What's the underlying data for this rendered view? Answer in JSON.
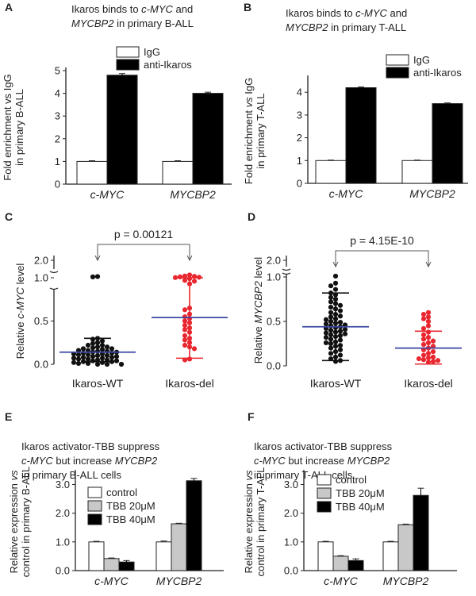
{
  "panel_letters": [
    "A",
    "B",
    "C",
    "D",
    "E",
    "F"
  ],
  "colors": {
    "igg": "#ffffff",
    "anti": "#000000",
    "wt_dots": "#111111",
    "del_dots": "#e8272f",
    "mean_line": "#3b46a6",
    "err_red": "#e8272f",
    "tbb20": "#c8c8c8",
    "tbb40": "#000000"
  },
  "chart_data": [
    {
      "panel": "A",
      "type": "bar",
      "title_lines": [
        [
          {
            "t": "Ikaros  binds to "
          },
          {
            "t": "c-MYC",
            "i": true
          },
          {
            "t": " and"
          }
        ],
        [
          {
            "t": "MYCBP2",
            "i": true
          },
          {
            "t": "  in primary B-ALL"
          }
        ]
      ],
      "ylabel_lines": [
        [
          {
            "t": "Fold enrichment vs IgG"
          }
        ],
        [
          {
            "t": "in primary B-ALL"
          }
        ]
      ],
      "categories": [
        "c-MYC",
        "MYCBP2"
      ],
      "series": [
        {
          "name": "IgG",
          "values": [
            1.0,
            1.0
          ],
          "errors": [
            0.03,
            0.03
          ]
        },
        {
          "name": "anti-Ikaros",
          "values": [
            4.8,
            4.0
          ],
          "errors": [
            0.07,
            0.05
          ]
        }
      ],
      "ylim": [
        0,
        5
      ],
      "yticks": [
        "0",
        "1",
        "2",
        "3",
        "4",
        "5"
      ],
      "ytick_values": [
        0,
        1,
        2,
        3,
        4,
        5
      ]
    },
    {
      "panel": "B",
      "type": "bar",
      "title_lines": [
        [
          {
            "t": "Ikaros  binds to "
          },
          {
            "t": "c-MYC",
            "i": true
          },
          {
            "t": " and"
          }
        ],
        [
          {
            "t": "MYCBP2",
            "i": true
          },
          {
            "t": " in primary T-ALL"
          }
        ]
      ],
      "ylabel_lines": [
        [
          {
            "t": "Fold enrichment "
          },
          {
            "t": "vs",
            "i": true
          },
          {
            "t": " IgG"
          }
        ],
        [
          {
            "t": "in primary T-ALL"
          }
        ]
      ],
      "categories": [
        "c-MYC",
        "MYCBP2"
      ],
      "series": [
        {
          "name": "IgG",
          "values": [
            1.0,
            1.0
          ],
          "errors": [
            0.02,
            0.02
          ]
        },
        {
          "name": "anti-Ikaros",
          "values": [
            4.2,
            3.5
          ],
          "errors": [
            0.03,
            0.03
          ]
        }
      ],
      "ylim": [
        0,
        4.6
      ],
      "yticks": [
        "0",
        "1",
        "2",
        "3",
        "4"
      ],
      "ytick_values": [
        0,
        1,
        2,
        3,
        4
      ]
    },
    {
      "panel": "C",
      "type": "scatter",
      "pvalue": "p = 0.00121",
      "ylabel_lines": [
        [
          {
            "t": "Relative "
          },
          {
            "t": "c-MYC",
            "i": true
          },
          {
            "t": " level"
          }
        ]
      ],
      "categories": [
        "Ikaros-WT",
        "Ikaros-del"
      ],
      "yticks": [
        "0.0",
        "0.5",
        "1.0",
        "2.0"
      ],
      "ytick_values": [
        0,
        0.5,
        1.0,
        2.0
      ],
      "groups": [
        {
          "name": "Ikaros-WT",
          "mean": 0.14,
          "sd_low": 0.03,
          "sd_high": 0.3,
          "points": [
            1.07,
            1.05,
            0.3,
            0.29,
            0.27,
            0.25,
            0.24,
            0.22,
            0.22,
            0.2,
            0.2,
            0.19,
            0.18,
            0.18,
            0.17,
            0.16,
            0.16,
            0.15,
            0.15,
            0.14,
            0.14,
            0.13,
            0.13,
            0.12,
            0.12,
            0.11,
            0.11,
            0.1,
            0.1,
            0.09,
            0.09,
            0.08,
            0.08,
            0.07,
            0.07,
            0.06,
            0.06,
            0.05,
            0.05,
            0.04,
            0.04,
            0.03,
            0.03,
            0.02,
            0.02,
            0.01,
            0.01,
            0.0,
            0.0,
            0.0
          ]
        },
        {
          "name": "Ikaros-del",
          "mean": 0.54,
          "sd_low": 0.07,
          "sd_high": 1.0,
          "points": [
            1.16,
            1.1,
            1.08,
            1.05,
            1.03,
            1.01,
            0.99,
            0.97,
            0.96,
            0.93,
            0.65,
            0.63,
            0.58,
            0.55,
            0.53,
            0.5,
            0.48,
            0.45,
            0.42,
            0.4,
            0.37,
            0.33,
            0.3,
            0.28,
            0.25,
            0.22,
            0.2,
            0.18,
            0.06,
            0.05
          ]
        }
      ]
    },
    {
      "panel": "D",
      "type": "scatter",
      "pvalue": "p =   4.15E-10",
      "ylabel_lines": [
        [
          {
            "t": "Relative "
          },
          {
            "t": "MYCBP2",
            "i": true
          },
          {
            "t": " level"
          }
        ]
      ],
      "categories": [
        "Ikaros-WT",
        "Ikaros-del"
      ],
      "yticks": [
        "0.0",
        "0.5",
        "1.0",
        "2.0"
      ],
      "ytick_values": [
        0,
        0.5,
        1.0,
        2.0
      ],
      "groups": [
        {
          "name": "Ikaros-WT",
          "mean": 0.44,
          "sd_low": 0.06,
          "sd_high": 0.82,
          "points": [
            1.05,
            0.93,
            0.9,
            0.86,
            0.82,
            0.8,
            0.77,
            0.75,
            0.72,
            0.7,
            0.68,
            0.66,
            0.64,
            0.62,
            0.6,
            0.58,
            0.56,
            0.55,
            0.53,
            0.52,
            0.5,
            0.49,
            0.48,
            0.47,
            0.46,
            0.45,
            0.44,
            0.43,
            0.42,
            0.41,
            0.4,
            0.39,
            0.38,
            0.37,
            0.36,
            0.35,
            0.34,
            0.33,
            0.32,
            0.3,
            0.29,
            0.27,
            0.26,
            0.25,
            0.23,
            0.22,
            0.2,
            0.18,
            0.16,
            0.14,
            0.12,
            0.1,
            0.08,
            0.06,
            0.05
          ]
        },
        {
          "name": "Ikaros-del",
          "mean": 0.2,
          "sd_low": 0.02,
          "sd_high": 0.39,
          "points": [
            0.6,
            0.58,
            0.55,
            0.53,
            0.5,
            0.45,
            0.42,
            0.38,
            0.35,
            0.32,
            0.3,
            0.28,
            0.26,
            0.24,
            0.22,
            0.2,
            0.18,
            0.16,
            0.14,
            0.12,
            0.1,
            0.09,
            0.08,
            0.07,
            0.06,
            0.05,
            0.04
          ]
        }
      ]
    },
    {
      "panel": "E",
      "type": "bar",
      "title_lines": [
        [
          {
            "t": "Ikaros activator-TBB  suppress"
          }
        ],
        [
          {
            "t": "c-MYC",
            "i": true
          },
          {
            "t": " but increase "
          },
          {
            "t": "MYCBP2",
            "i": true
          }
        ],
        [
          {
            "t": "in primary  B-ALL cells"
          }
        ]
      ],
      "ylabel_lines": [
        [
          {
            "t": "Relative expression "
          },
          {
            "t": "vs",
            "i": true
          }
        ],
        [
          {
            "t": "control in primary  B-ALL"
          }
        ]
      ],
      "categories": [
        "c-MYC",
        "MYCBP2"
      ],
      "series": [
        {
          "name": "control",
          "values": [
            1.0,
            1.0
          ],
          "errors": [
            0.02,
            0.03
          ]
        },
        {
          "name": "TBB 20μM",
          "values": [
            0.42,
            1.63
          ],
          "errors": [
            0.02,
            0.02
          ]
        },
        {
          "name": "TBB 40μM",
          "values": [
            0.3,
            3.13
          ],
          "errors": [
            0.05,
            0.08
          ]
        }
      ],
      "ylim": [
        0,
        3.4
      ],
      "yticks": [
        "0.0",
        "1.0",
        "2.0",
        "3.0"
      ],
      "ytick_values": [
        0,
        1,
        2,
        3
      ]
    },
    {
      "panel": "F",
      "type": "bar",
      "title_lines": [
        [
          {
            "t": "Ikaros activator-TBB  suppress"
          }
        ],
        [
          {
            "t": "c-MYC",
            "i": true
          },
          {
            "t": " but increase "
          },
          {
            "t": "MYCBP2",
            "i": true
          }
        ],
        [
          {
            "t": "in primary  T-ALL cells"
          }
        ]
      ],
      "ylabel_lines": [
        [
          {
            "t": "Relative expression "
          },
          {
            "t": "vs",
            "i": true
          }
        ],
        [
          {
            "t": "control in primary T-ALL"
          }
        ]
      ],
      "categories": [
        "c-MYC",
        "MYCBP2"
      ],
      "series": [
        {
          "name": "control",
          "values": [
            1.0,
            1.0
          ],
          "errors": [
            0.02,
            0.02
          ]
        },
        {
          "name": "TBB 20μM",
          "values": [
            0.5,
            1.6
          ],
          "errors": [
            0.02,
            0.02
          ]
        },
        {
          "name": "TBB 40μM",
          "values": [
            0.35,
            2.62
          ],
          "errors": [
            0.06,
            0.25
          ]
        }
      ],
      "ylim": [
        0,
        3.4
      ],
      "yticks": [
        "0.0",
        "1.0",
        "2.0",
        "3.0"
      ],
      "ytick_values": [
        0,
        1,
        2,
        3
      ]
    }
  ]
}
